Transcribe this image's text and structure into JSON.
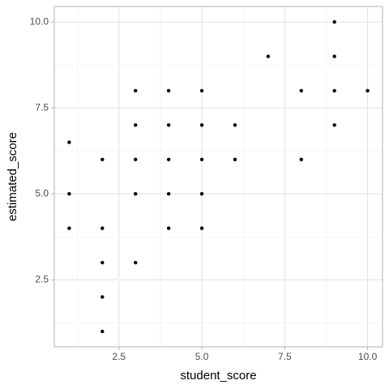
{
  "chart_data": {
    "type": "scatter",
    "x_label": "student_score",
    "y_label": "estimated_score",
    "x": [
      1,
      1,
      1,
      2,
      2,
      2,
      2,
      2,
      3,
      3,
      3,
      3,
      3,
      4,
      4,
      4,
      4,
      4,
      5,
      5,
      5,
      5,
      5,
      6,
      6,
      7,
      8,
      8,
      9,
      9,
      9,
      9,
      10
    ],
    "y": [
      6.5,
      5,
      4,
      6,
      4,
      3,
      2,
      1,
      8,
      7,
      6,
      5,
      3,
      8,
      7,
      6,
      5,
      4,
      8,
      7,
      6,
      5,
      4,
      7,
      6,
      9,
      8,
      6,
      10,
      9,
      8,
      7,
      8
    ],
    "color": "#000000",
    "xlim": [
      0.55,
      10.45
    ],
    "ylim": [
      0.55,
      10.45
    ],
    "xticks": [
      {
        "value": 2.5,
        "label": "2.5"
      },
      {
        "value": 5,
        "label": "5.0"
      },
      {
        "value": 7.5,
        "label": "7.5"
      },
      {
        "value": 10,
        "label": "10.0"
      }
    ],
    "yticks": [
      {
        "value": 2.5,
        "label": "2.5"
      },
      {
        "value": 5,
        "label": "5.0"
      },
      {
        "value": 7.5,
        "label": "7.5"
      },
      {
        "value": 10,
        "label": "10.0"
      }
    ],
    "grid": true
  }
}
